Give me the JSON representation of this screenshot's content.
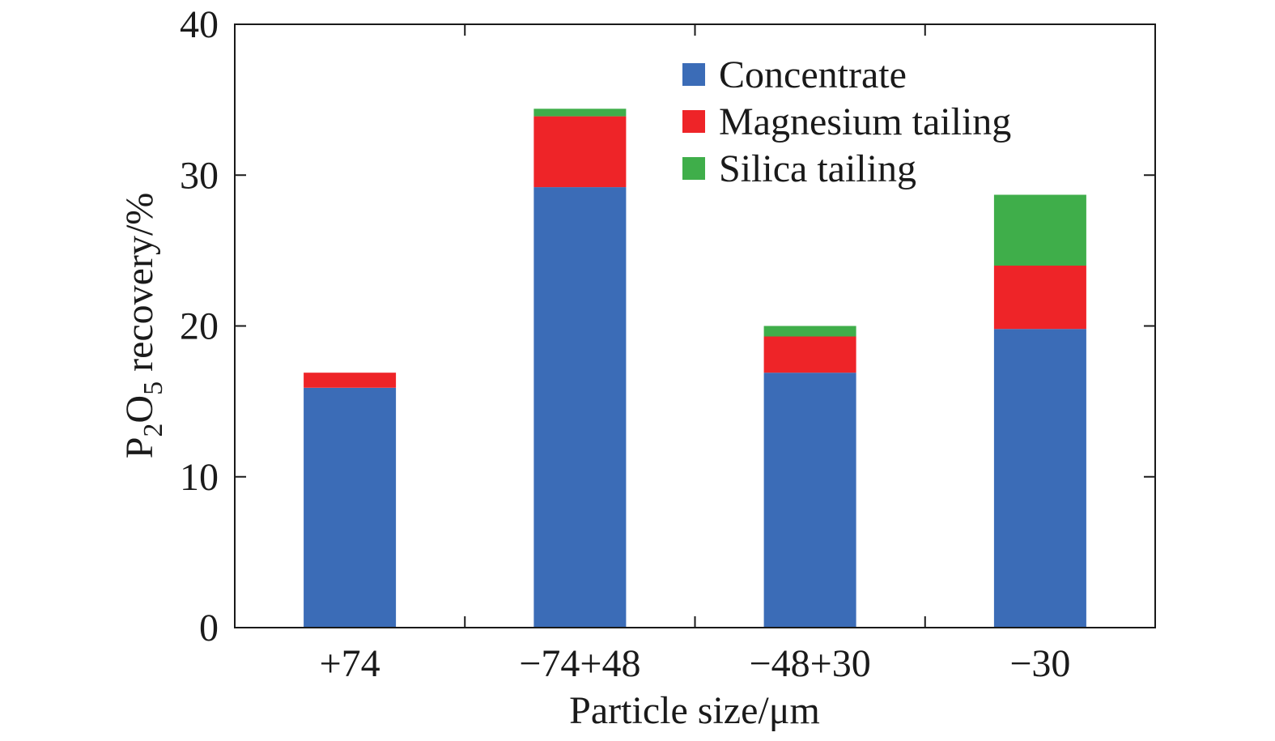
{
  "chart_data": {
    "type": "bar",
    "stacked": true,
    "categories": [
      "+74",
      "−74+48",
      "−48+30",
      "−30"
    ],
    "series": [
      {
        "name": "Concentrate",
        "color": "#3b6cb7",
        "values": [
          15.9,
          29.2,
          16.9,
          19.8
        ]
      },
      {
        "name": "Magnesium tailing",
        "color": "#ee2428",
        "values": [
          1.0,
          4.7,
          2.4,
          4.2
        ]
      },
      {
        "name": "Silica tailing",
        "color": "#3fae4a",
        "values": [
          0.0,
          0.5,
          0.7,
          4.7
        ]
      }
    ],
    "y_axis": {
      "label_parts": {
        "base1": "P",
        "sub1": "2",
        "base2": "O",
        "sub2": "5",
        "rest": " recovery/%"
      },
      "ylim": [
        0,
        40
      ],
      "ticks": [
        "0",
        "10",
        "20",
        "30",
        "40"
      ]
    },
    "x_axis": {
      "label": "Particle size/μm"
    },
    "legend": {
      "position": "top-right"
    },
    "grid": false
  }
}
